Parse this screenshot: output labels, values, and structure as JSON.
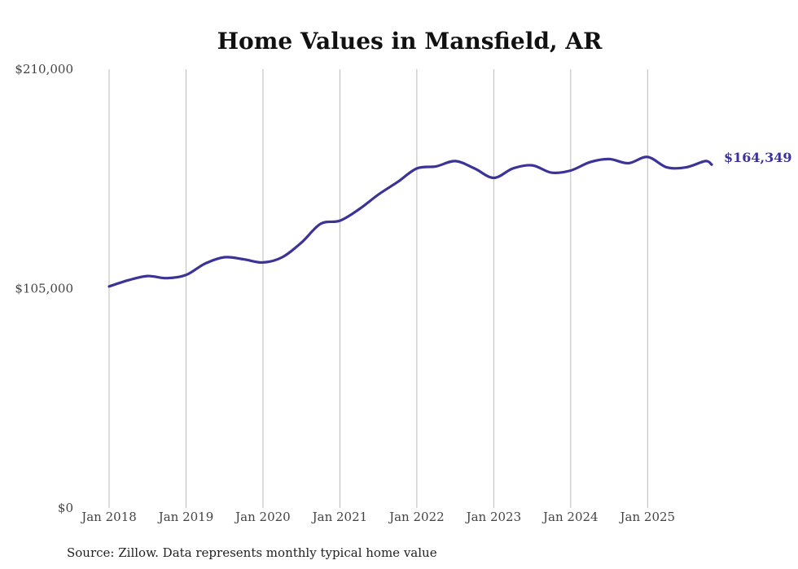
{
  "chart_data": {
    "type": "line",
    "title": "Home Values in Mansfield, AR",
    "source": "Source: Zillow. Data represents monthly typical home value",
    "ylim": [
      0,
      210000
    ],
    "y_ticks": [
      {
        "value": 0,
        "label": "$0"
      },
      {
        "value": 105000,
        "label": "$105,000"
      },
      {
        "value": 210000,
        "label": "$210,000"
      }
    ],
    "xlim": [
      2018.0,
      2025.833
    ],
    "x_ticks": [
      {
        "value": 2018,
        "label": "Jan 2018"
      },
      {
        "value": 2019,
        "label": "Jan 2019"
      },
      {
        "value": 2020,
        "label": "Jan 2020"
      },
      {
        "value": 2021,
        "label": "Jan 2021"
      },
      {
        "value": 2022,
        "label": "Jan 2022"
      },
      {
        "value": 2023,
        "label": "Jan 2023"
      },
      {
        "value": 2024,
        "label": "Jan 2024"
      },
      {
        "value": 2025,
        "label": "Jan 2025"
      }
    ],
    "grid": "vertical",
    "series": [
      {
        "name": "Typical home value",
        "color": "#3b3397",
        "end_label": "$164,349",
        "points": [
          [
            2018.0,
            106000
          ],
          [
            2018.25,
            109000
          ],
          [
            2018.5,
            111000
          ],
          [
            2018.75,
            110000
          ],
          [
            2019.0,
            111500
          ],
          [
            2019.25,
            117000
          ],
          [
            2019.5,
            120000
          ],
          [
            2019.75,
            119000
          ],
          [
            2020.0,
            117500
          ],
          [
            2020.25,
            120000
          ],
          [
            2020.5,
            127000
          ],
          [
            2020.75,
            136000
          ],
          [
            2021.0,
            137500
          ],
          [
            2021.25,
            143000
          ],
          [
            2021.5,
            150000
          ],
          [
            2021.75,
            156000
          ],
          [
            2022.0,
            162500
          ],
          [
            2022.25,
            163500
          ],
          [
            2022.5,
            166000
          ],
          [
            2022.75,
            162500
          ],
          [
            2023.0,
            158000
          ],
          [
            2023.25,
            162500
          ],
          [
            2023.5,
            164000
          ],
          [
            2023.75,
            160500
          ],
          [
            2024.0,
            161500
          ],
          [
            2024.25,
            165500
          ],
          [
            2024.5,
            167000
          ],
          [
            2024.75,
            165000
          ],
          [
            2025.0,
            168000
          ],
          [
            2025.25,
            163000
          ],
          [
            2025.5,
            163000
          ],
          [
            2025.75,
            166000
          ],
          [
            2025.833,
            164349
          ]
        ]
      }
    ]
  }
}
